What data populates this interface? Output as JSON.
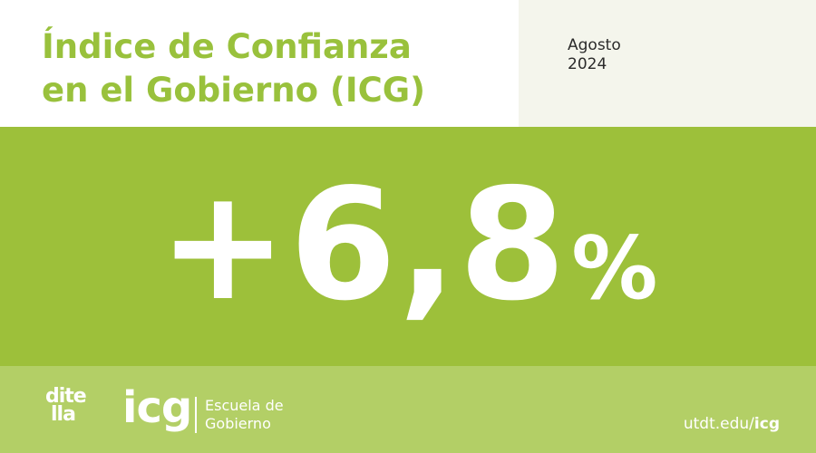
{
  "header": {
    "title_line1": "Índice de Confianza",
    "title_line2": "en el Gobierno (ICG)",
    "date_month": "Agosto",
    "date_year": "2024"
  },
  "hero": {
    "value_number": "+6,8",
    "value_percent": "%"
  },
  "footer": {
    "ditella_line1": "dite",
    "ditella_line2": "lla",
    "icg_logo": "icg",
    "escuela_line1": "Escuela de",
    "escuela_line2": "Gobierno",
    "url_base": "utdt.edu/",
    "url_path": "icg"
  },
  "colors": {
    "title_green": "#99c13c",
    "hero_green": "#9dc03a",
    "footer_green": "#b3cf66",
    "date_panel": "#f4f5ec"
  }
}
